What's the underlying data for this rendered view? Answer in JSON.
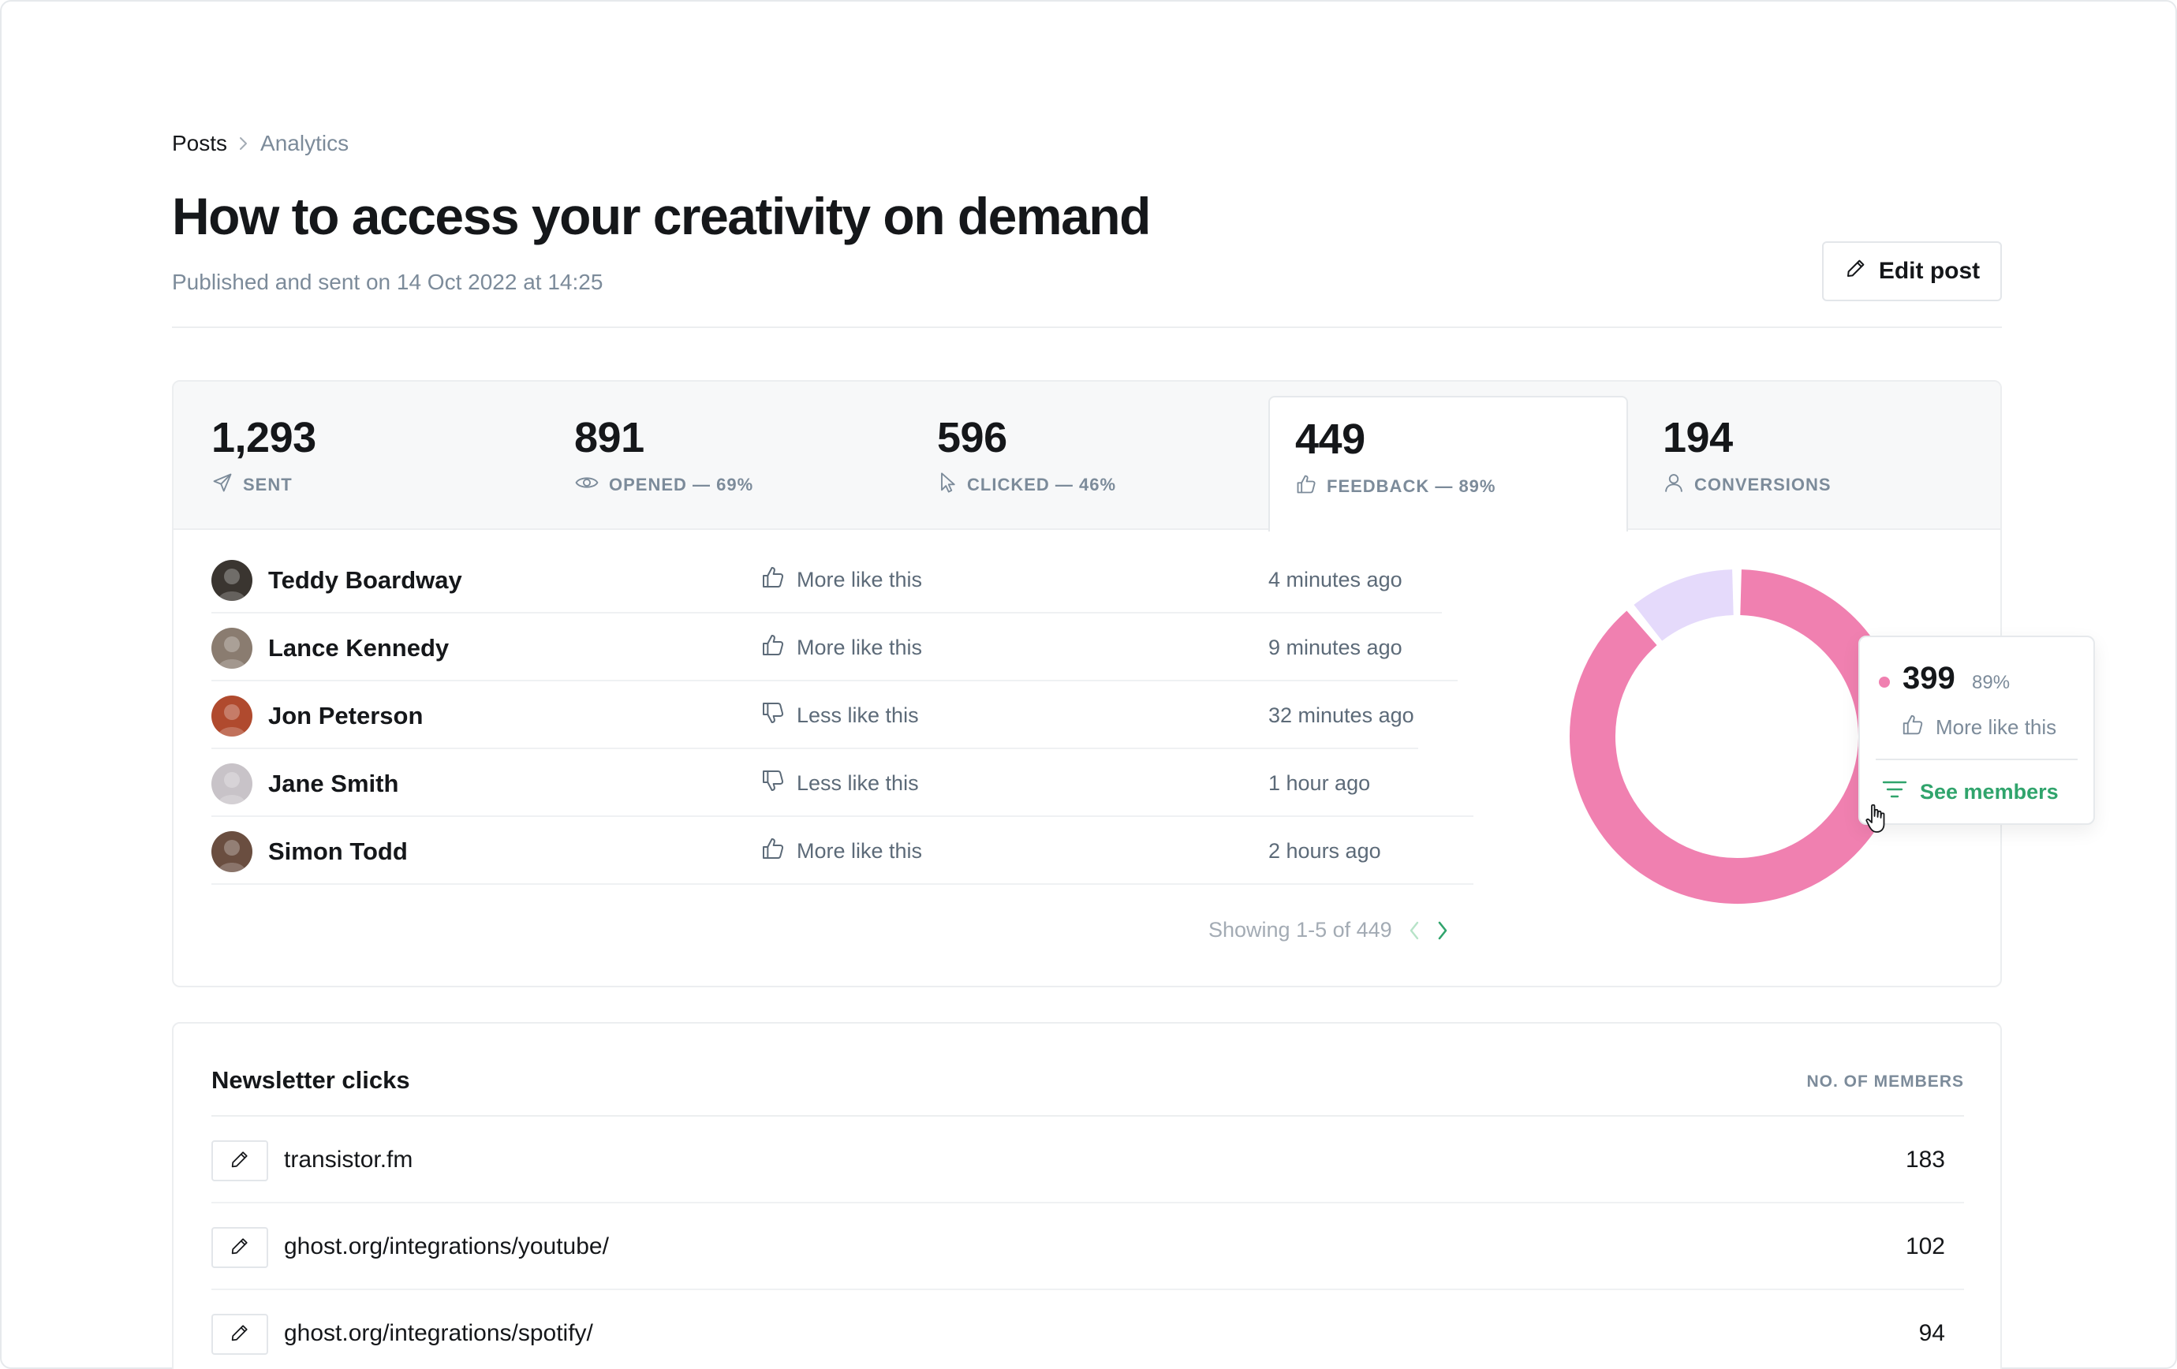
{
  "breadcrumb": {
    "parent": "Posts",
    "current": "Analytics"
  },
  "page": {
    "title": "How to access your creativity on demand",
    "subtitle": "Published and sent on 14 Oct 2022 at 14:25",
    "edit_label": "Edit post"
  },
  "stats": {
    "tabs": [
      {
        "value": "1,293",
        "label": "SENT",
        "icon": "send-icon"
      },
      {
        "value": "891",
        "label": "OPENED — 69%",
        "icon": "eye-icon"
      },
      {
        "value": "596",
        "label": "CLICKED — 46%",
        "icon": "cursor-icon"
      },
      {
        "value": "449",
        "label": "FEEDBACK — 89%",
        "icon": "thumbs-up-icon",
        "active": true
      },
      {
        "value": "194",
        "label": "CONVERSIONS",
        "icon": "user-icon"
      }
    ]
  },
  "feedback": {
    "rows": [
      {
        "name": "Teddy Boardway",
        "reaction": "More like this",
        "type": "positive",
        "time": "4 minutes ago",
        "avatar_color": "#3a3530"
      },
      {
        "name": "Lance Kennedy",
        "reaction": "More like this",
        "type": "positive",
        "time": "9 minutes ago",
        "avatar_color": "#8a7c70"
      },
      {
        "name": "Jon Peterson",
        "reaction": "Less like this",
        "type": "negative",
        "time": "32 minutes ago",
        "avatar_color": "#b04a2e"
      },
      {
        "name": "Jane Smith",
        "reaction": "Less like this",
        "type": "negative",
        "time": "1 hour ago",
        "avatar_color": "#c8c3c8"
      },
      {
        "name": "Simon Todd",
        "reaction": "More like this",
        "type": "positive",
        "time": "2 hours ago",
        "avatar_color": "#6a4e40"
      }
    ],
    "pagination": "Showing 1-5 of 449"
  },
  "donut": {
    "positive_fraction": 0.89,
    "negative_fraction": 0.11,
    "colors": {
      "positive": "#f080b0",
      "negative": "#e5dafb"
    }
  },
  "tooltip": {
    "count": "399",
    "percent": "89%",
    "reaction": "More like this",
    "action": "See members"
  },
  "clicks": {
    "title": "Newsletter clicks",
    "column": "NO. OF MEMBERS",
    "rows": [
      {
        "url": "transistor.fm",
        "count": "183"
      },
      {
        "url": "ghost.org/integrations/youtube/",
        "count": "102"
      },
      {
        "url": "ghost.org/integrations/spotify/",
        "count": "94"
      }
    ]
  },
  "colors": {
    "accent": "#30a46c",
    "text": "#15171a",
    "muted": "#7c8b9a"
  }
}
